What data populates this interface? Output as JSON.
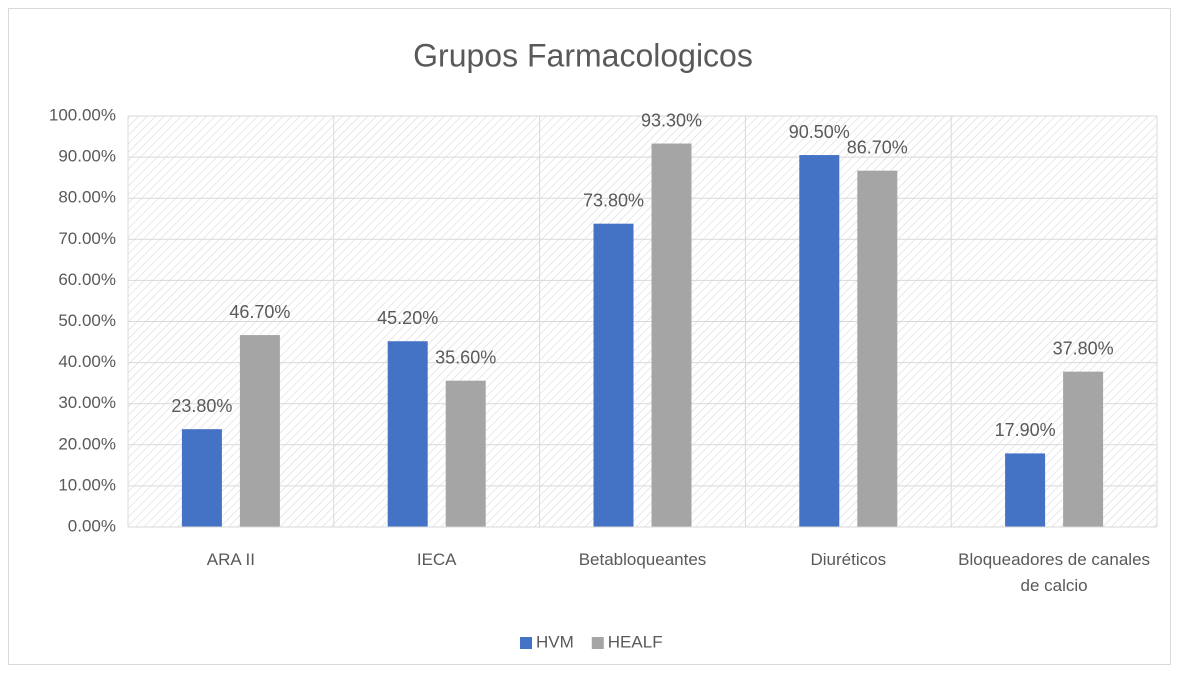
{
  "chart_data": {
    "type": "bar",
    "title": "Grupos Farmacologicos",
    "categories": [
      "ARA II",
      "IECA",
      "Betabloqueantes",
      "Diuréticos",
      "Bloqueadores de canales de calcio"
    ],
    "series": [
      {
        "name": "HVM",
        "color": "#4472c4",
        "values": [
          23.8,
          45.2,
          73.8,
          90.5,
          17.9
        ],
        "value_labels": [
          "23.80%",
          "45.20%",
          "73.80%",
          "90.50%",
          "17.90%"
        ]
      },
      {
        "name": "HEALF",
        "color": "#a5a5a5",
        "values": [
          46.7,
          35.6,
          93.3,
          86.7,
          37.8
        ],
        "value_labels": [
          "46.70%",
          "35.60%",
          "93.30%",
          "86.70%",
          "37.80%"
        ]
      }
    ],
    "ylim": [
      0,
      100
    ],
    "yticks": [
      {
        "value": 0,
        "label": "0.00%"
      },
      {
        "value": 10,
        "label": "10.00%"
      },
      {
        "value": 20,
        "label": "20.00%"
      },
      {
        "value": 30,
        "label": "30.00%"
      },
      {
        "value": 40,
        "label": "40.00%"
      },
      {
        "value": 50,
        "label": "50.00%"
      },
      {
        "value": 60,
        "label": "60.00%"
      },
      {
        "value": 70,
        "label": "70.00%"
      },
      {
        "value": 80,
        "label": "80.00%"
      },
      {
        "value": 90,
        "label": "90.00%"
      },
      {
        "value": 100,
        "label": "100.00%"
      }
    ],
    "grid": true,
    "legend": "bottom"
  }
}
